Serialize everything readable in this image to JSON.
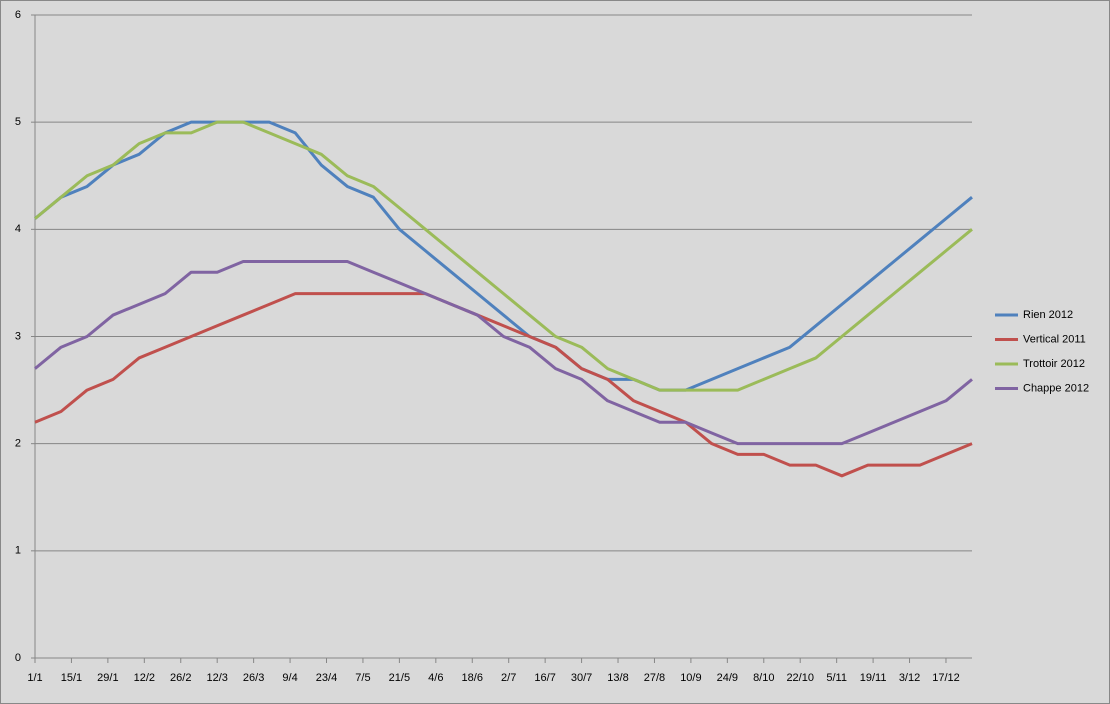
{
  "chart_data": {
    "type": "line",
    "x": [
      "1/1",
      "11/1",
      "21/1",
      "31/1",
      "10/2",
      "20/2",
      "2/3",
      "12/3",
      "22/3",
      "1/4",
      "11/4",
      "21/4",
      "1/5",
      "11/5",
      "21/5",
      "31/5",
      "10/6",
      "20/6",
      "30/6",
      "10/7",
      "20/7",
      "30/7",
      "9/8",
      "19/8",
      "29/8",
      "8/9",
      "18/9",
      "28/9",
      "8/10",
      "18/10",
      "28/10",
      "7/11",
      "17/11",
      "27/11",
      "7/12",
      "17/12",
      "27/12"
    ],
    "series": [
      {
        "name": "Rien 2012",
        "color": "#4f81bd",
        "values": [
          4.1,
          4.3,
          4.4,
          4.6,
          4.7,
          4.9,
          5.0,
          5.0,
          5.0,
          5.0,
          4.9,
          4.6,
          4.4,
          4.3,
          4.0,
          3.8,
          3.6,
          3.4,
          3.2,
          3.0,
          2.9,
          2.7,
          2.6,
          2.6,
          2.5,
          2.5,
          2.6,
          2.7,
          2.8,
          2.9,
          3.1,
          3.3,
          3.5,
          3.7,
          3.9,
          4.1,
          4.3
        ]
      },
      {
        "name": "Vertical 2011",
        "color": "#c0504d",
        "values": [
          2.2,
          2.3,
          2.5,
          2.6,
          2.8,
          2.9,
          3.0,
          3.1,
          3.2,
          3.3,
          3.4,
          3.4,
          3.4,
          3.4,
          3.4,
          3.4,
          3.3,
          3.2,
          3.1,
          3.0,
          2.9,
          2.7,
          2.6,
          2.4,
          2.3,
          2.2,
          2.0,
          1.9,
          1.9,
          1.8,
          1.8,
          1.7,
          1.8,
          1.8,
          1.8,
          1.9,
          2.0
        ]
      },
      {
        "name": "Trottoir 2012",
        "color": "#9bbb59",
        "values": [
          4.1,
          4.3,
          4.5,
          4.6,
          4.8,
          4.9,
          4.9,
          5.0,
          5.0,
          4.9,
          4.8,
          4.7,
          4.5,
          4.4,
          4.2,
          4.0,
          3.8,
          3.6,
          3.4,
          3.2,
          3.0,
          2.9,
          2.7,
          2.6,
          2.5,
          2.5,
          2.5,
          2.5,
          2.6,
          2.7,
          2.8,
          3.0,
          3.2,
          3.4,
          3.6,
          3.8,
          4.0
        ]
      },
      {
        "name": "Chappe 2012",
        "color": "#8064a2",
        "values": [
          2.7,
          2.9,
          3.0,
          3.2,
          3.3,
          3.4,
          3.6,
          3.6,
          3.7,
          3.7,
          3.7,
          3.7,
          3.7,
          3.6,
          3.5,
          3.4,
          3.3,
          3.2,
          3.0,
          2.9,
          2.7,
          2.6,
          2.4,
          2.3,
          2.2,
          2.2,
          2.1,
          2.0,
          2.0,
          2.0,
          2.0,
          2.0,
          2.1,
          2.2,
          2.3,
          2.4,
          2.6
        ]
      }
    ],
    "xlim": [
      "1/1",
      "27/12"
    ],
    "xticks": [
      "1/1",
      "15/1",
      "29/1",
      "12/2",
      "26/2",
      "12/3",
      "26/3",
      "9/4",
      "23/4",
      "7/5",
      "21/5",
      "4/6",
      "18/6",
      "2/7",
      "16/7",
      "30/7",
      "13/8",
      "27/8",
      "10/9",
      "24/9",
      "8/10",
      "22/10",
      "5/11",
      "19/11",
      "3/12",
      "17/12"
    ],
    "ylim": [
      0,
      6
    ],
    "yticks": [
      0,
      1,
      2,
      3,
      4,
      5,
      6
    ],
    "grid": true,
    "legend": "right"
  }
}
